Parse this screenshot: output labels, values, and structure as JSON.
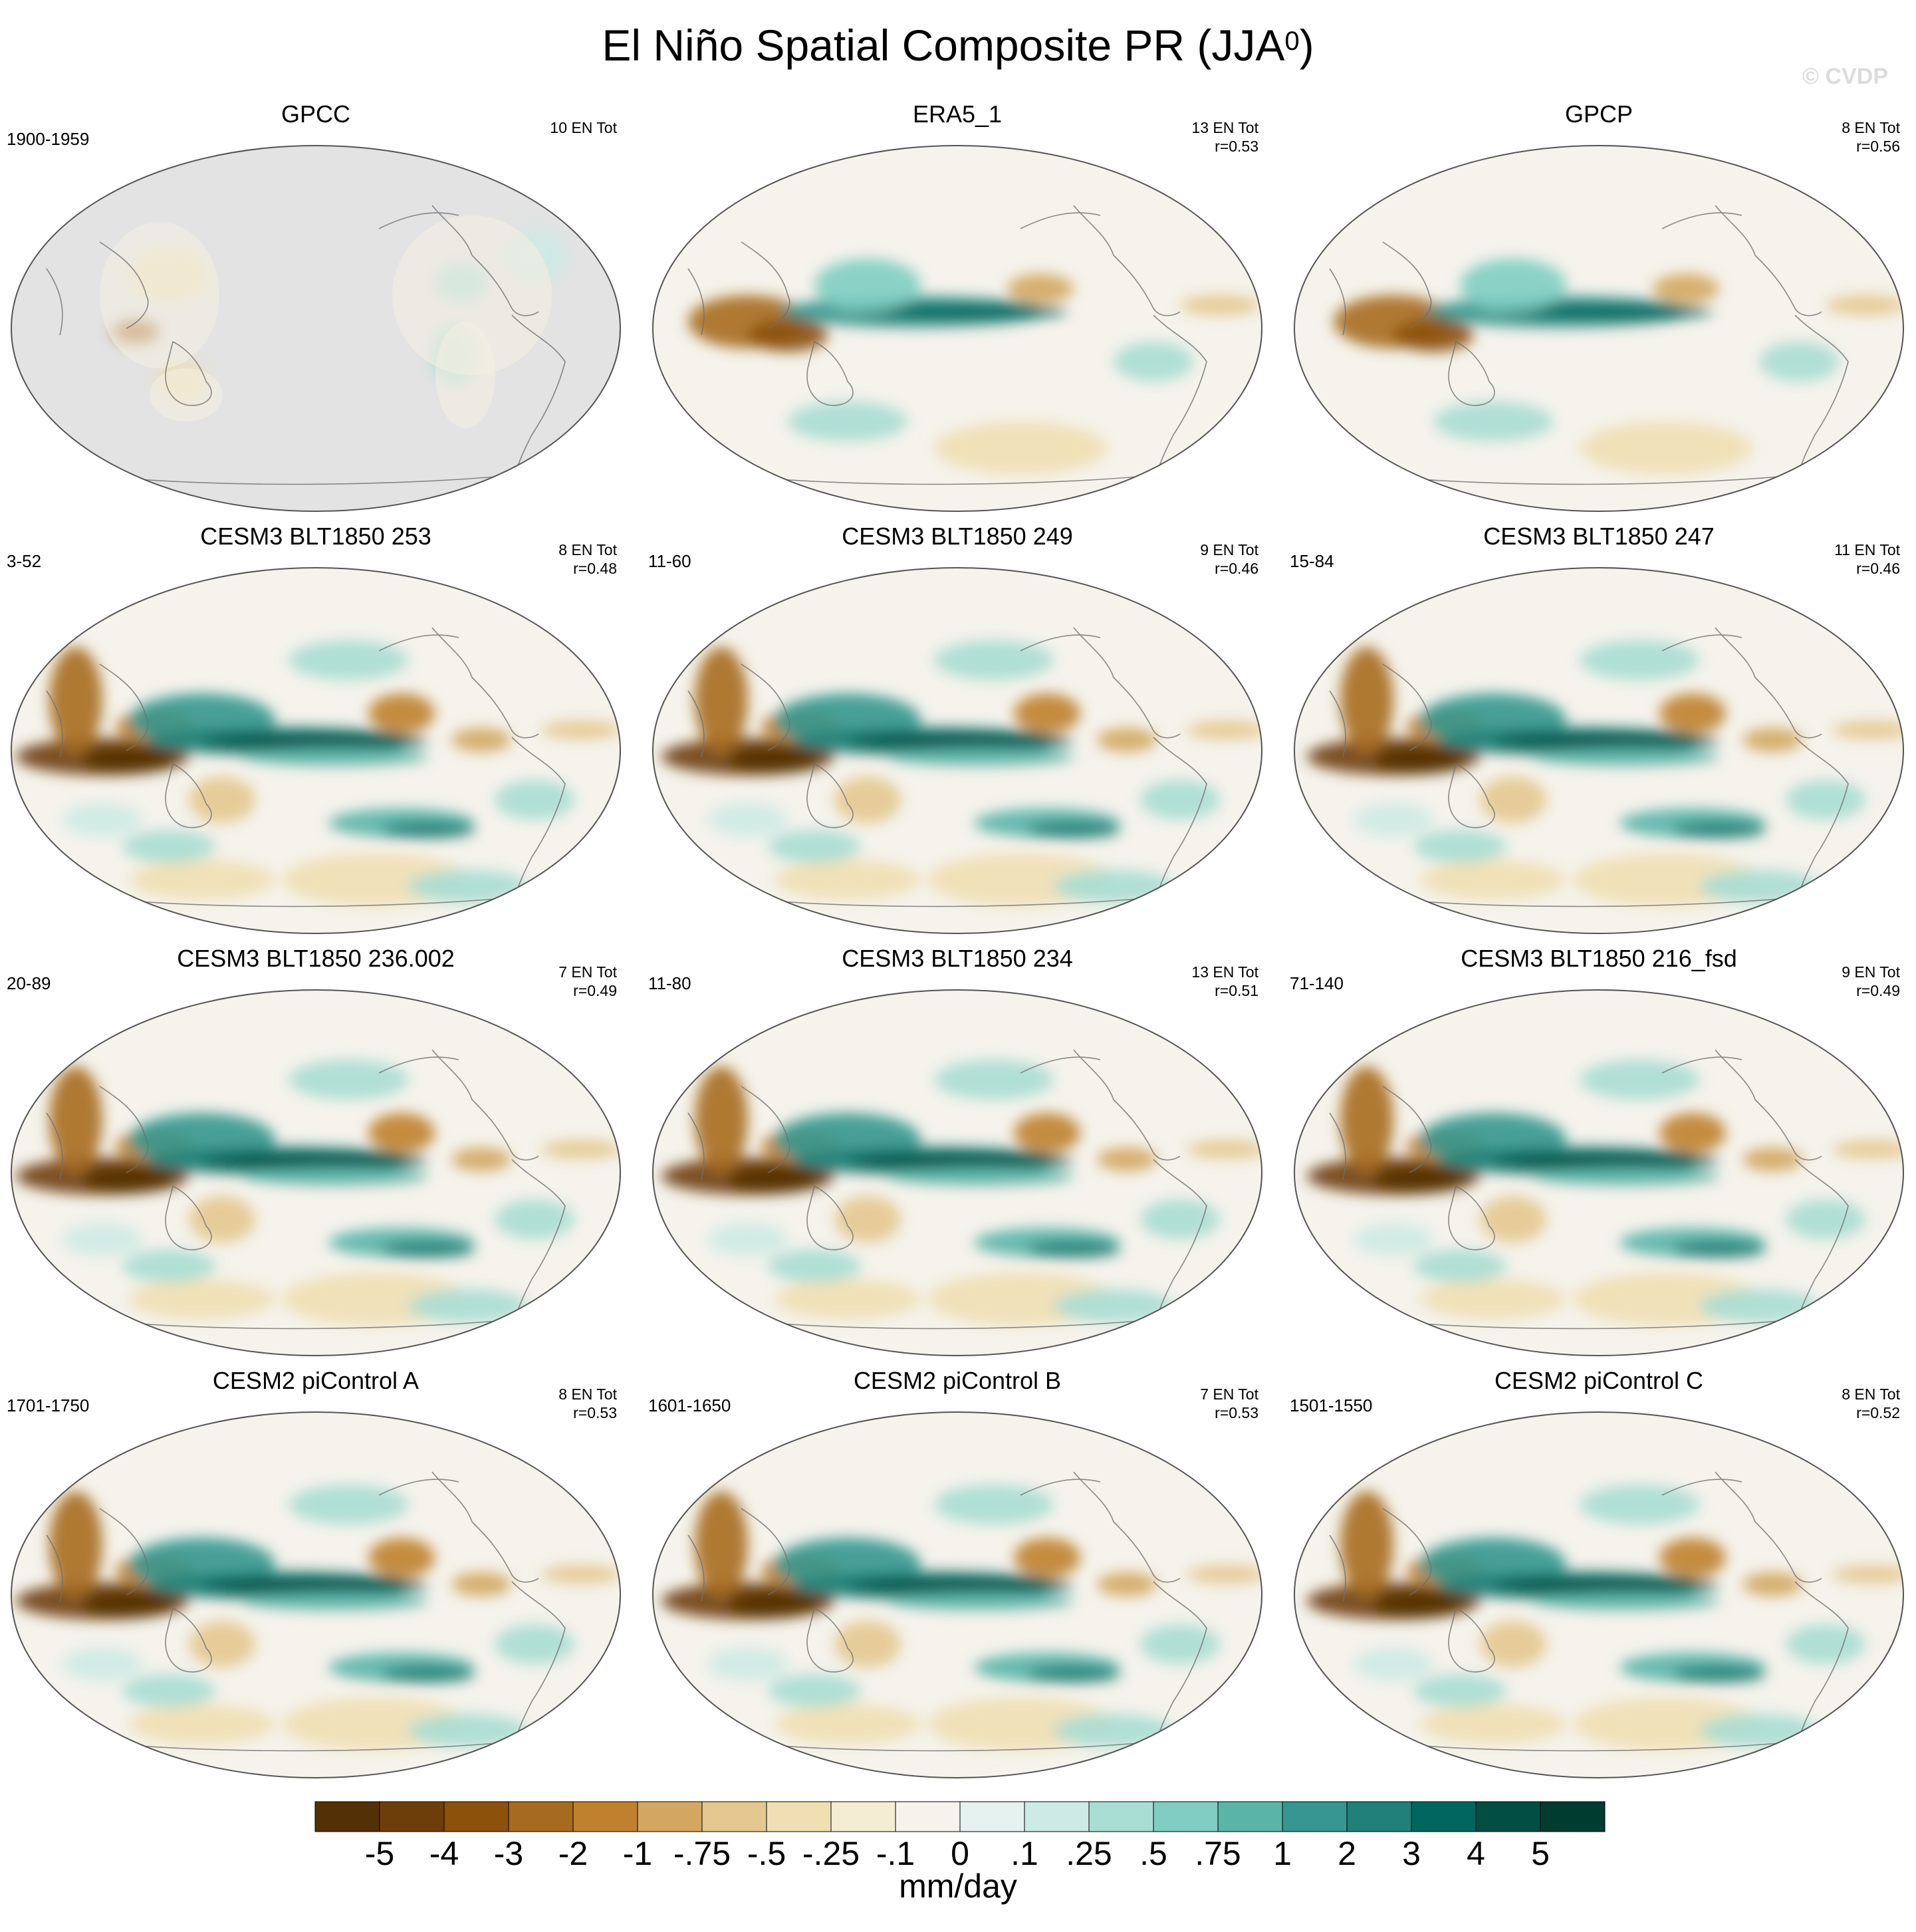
{
  "title": "El Niño Spatial Composite PR (JJA",
  "title_sup": "0",
  "title_close": ")",
  "watermark": "© CVDP",
  "panels": [
    {
      "title": "GPCC",
      "left": "1900-1959",
      "right1": "10 EN Tot",
      "right2": "",
      "obs": true,
      "mode": "gpcc"
    },
    {
      "title": "ERA5_1",
      "left": "",
      "right1": "13 EN Tot",
      "right2": "r=0.53",
      "mode": "era5"
    },
    {
      "title": "GPCP",
      "left": "",
      "right1": "8 EN Tot",
      "right2": "r=0.56",
      "mode": "gpcp"
    },
    {
      "title": "CESM3 BLT1850 253",
      "left": "3-52",
      "right1": "8 EN Tot",
      "right2": "r=0.48",
      "mode": "model"
    },
    {
      "title": "CESM3 BLT1850 249",
      "left": "11-60",
      "right1": "9 EN Tot",
      "right2": "r=0.46",
      "mode": "model"
    },
    {
      "title": "CESM3 BLT1850 247",
      "left": "15-84",
      "right1": "11 EN Tot",
      "right2": "r=0.46",
      "mode": "model"
    },
    {
      "title": "CESM3 BLT1850 236.002",
      "left": "20-89",
      "right1": "7 EN Tot",
      "right2": "r=0.49",
      "mode": "model"
    },
    {
      "title": "CESM3 BLT1850 234",
      "left": "11-80",
      "right1": "13 EN Tot",
      "right2": "r=0.51",
      "mode": "model"
    },
    {
      "title": "CESM3 BLT1850 216_fsd",
      "left": "71-140",
      "right1": "9 EN Tot",
      "right2": "r=0.49",
      "mode": "model"
    },
    {
      "title": "CESM2 piControl A",
      "left": "1701-1750",
      "right1": "8 EN Tot",
      "right2": "r=0.53",
      "mode": "model"
    },
    {
      "title": "CESM2 piControl B",
      "left": "1601-1650",
      "right1": "7 EN Tot",
      "right2": "r=0.53",
      "mode": "model"
    },
    {
      "title": "CESM2 piControl C",
      "left": "1501-1550",
      "right1": "8 EN Tot",
      "right2": "r=0.52",
      "mode": "model"
    }
  ],
  "colorbar": {
    "colors": [
      "#543005",
      "#6e3e0a",
      "#8c510a",
      "#a76b1f",
      "#bf812d",
      "#d3a75f",
      "#e4c88f",
      "#f0dfb3",
      "#f5ecd4",
      "#f5f3ec",
      "#e5f2ef",
      "#cdeae4",
      "#a8ddd3",
      "#80cdc1",
      "#5ab4a8",
      "#35978f",
      "#1f8178",
      "#01665e",
      "#014e44",
      "#003c30"
    ],
    "labels": [
      "-5",
      "-4",
      "-3",
      "-2",
      "-1",
      "-.75",
      "-.5",
      "-.25",
      "-.1",
      "0",
      ".1",
      ".25",
      ".5",
      ".75",
      "1",
      "2",
      "3",
      "4",
      "5"
    ],
    "unit": "mm/day"
  }
}
